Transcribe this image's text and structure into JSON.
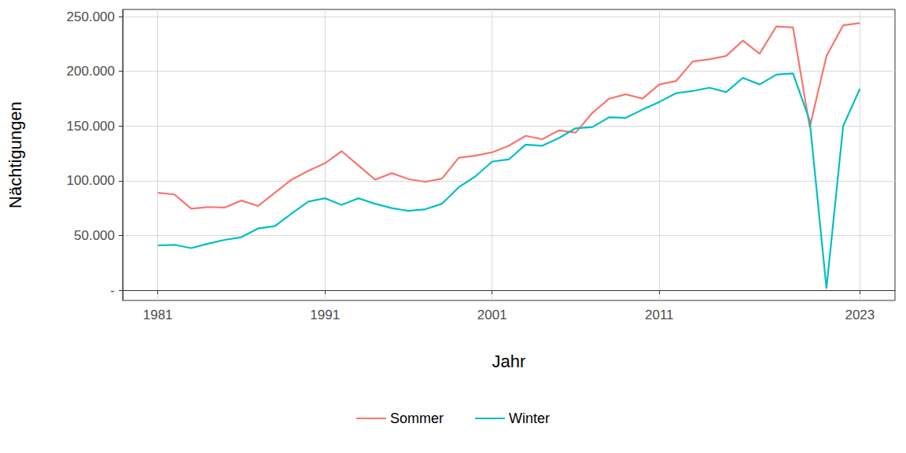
{
  "chart_data": {
    "type": "line",
    "x_label": "Jahr",
    "y_label": "Nächtigungen",
    "x": [
      1981,
      1982,
      1983,
      1984,
      1985,
      1986,
      1987,
      1988,
      1989,
      1990,
      1991,
      1992,
      1993,
      1994,
      1995,
      1996,
      1997,
      1998,
      1999,
      2000,
      2001,
      2002,
      2003,
      2004,
      2005,
      2006,
      2007,
      2008,
      2009,
      2010,
      2011,
      2012,
      2013,
      2014,
      2015,
      2016,
      2017,
      2018,
      2019,
      2020,
      2021,
      2022,
      2023
    ],
    "series": [
      {
        "name": "Sommer",
        "color": "#F8766D",
        "values": [
          89000,
          87500,
          74500,
          76000,
          75500,
          82000,
          77000,
          89000,
          101000,
          109000,
          116000,
          127000,
          114000,
          101000,
          107000,
          101500,
          99000,
          102000,
          121000,
          123000,
          126000,
          132000,
          141000,
          138000,
          146000,
          144000,
          162000,
          175000,
          179000,
          175000,
          188000,
          191000,
          209000,
          211000,
          214000,
          228000,
          216000,
          241000,
          240000,
          149000,
          214000,
          242000,
          244000
        ]
      },
      {
        "name": "Winter",
        "color": "#00BFC4",
        "values": [
          41000,
          41500,
          38500,
          42500,
          46000,
          48500,
          56500,
          58500,
          70000,
          81000,
          84000,
          78000,
          84000,
          79000,
          75000,
          72500,
          74000,
          79000,
          94000,
          104000,
          117500,
          119500,
          133000,
          132000,
          139000,
          148000,
          149000,
          158000,
          157500,
          165000,
          172000,
          180000,
          182000,
          185000,
          181000,
          194000,
          188000,
          197000,
          198000,
          155000,
          1500,
          150000,
          184000
        ]
      }
    ],
    "xlim": [
      1978.9,
      2025.1
    ],
    "xticks": [
      1981,
      1991,
      2001,
      2011,
      2023
    ],
    "ylim": [
      -9300,
      256500
    ],
    "yticks": [
      {
        "value": 0,
        "label": "-"
      },
      {
        "value": 50000,
        "label": "50.000"
      },
      {
        "value": 100000,
        "label": "100.000"
      },
      {
        "value": 150000,
        "label": "150.000"
      },
      {
        "value": 200000,
        "label": "200.000"
      },
      {
        "value": 250000,
        "label": "250.000"
      }
    ],
    "grid": true,
    "legend": "bottom"
  }
}
